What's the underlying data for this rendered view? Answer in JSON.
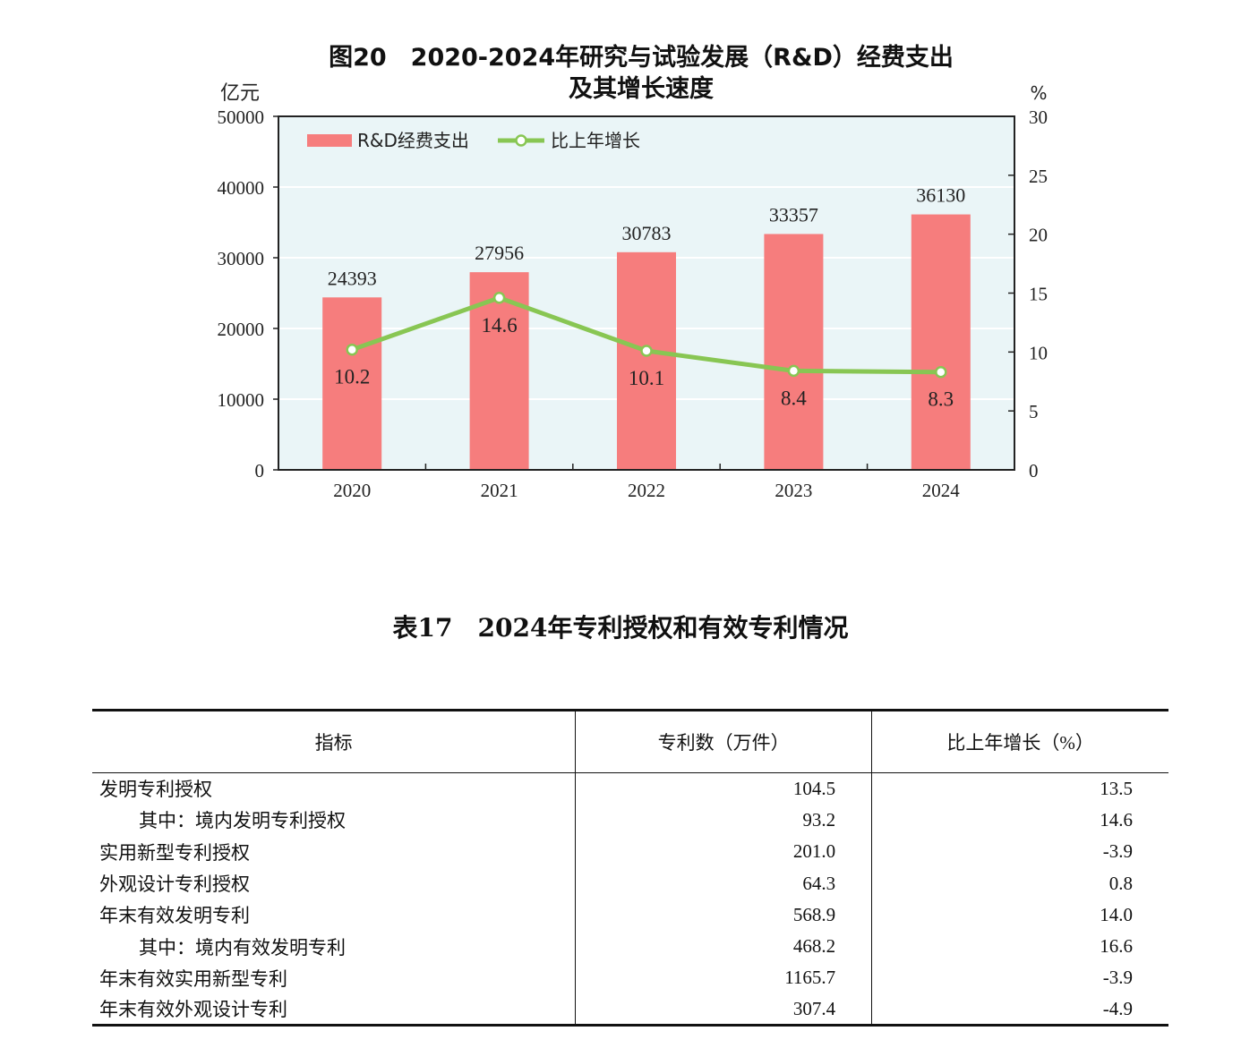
{
  "chart_data": {
    "type": "bar+line",
    "title_line1": "图20　2020-2024年研究与试验发展（R&D）经费支出",
    "title_line2": "及其增长速度",
    "left_unit": "亿元",
    "right_unit": "%",
    "categories": [
      "2020",
      "2021",
      "2022",
      "2023",
      "2024"
    ],
    "series": [
      {
        "name": "R&D经费支出",
        "type": "bar",
        "axis": "left",
        "values": [
          24393,
          27956,
          30783,
          33357,
          36130
        ],
        "labels": [
          "24393",
          "27956",
          "30783",
          "33357",
          "36130"
        ]
      },
      {
        "name": "比上年增长",
        "type": "line",
        "axis": "right",
        "values": [
          10.2,
          14.6,
          10.1,
          8.4,
          8.3
        ],
        "labels": [
          "10.2",
          "14.6",
          "10.1",
          "8.4",
          "8.3"
        ]
      }
    ],
    "left_axis": {
      "min": 0,
      "max": 50000,
      "ticks": [
        "0",
        "10000",
        "20000",
        "30000",
        "40000",
        "50000"
      ]
    },
    "right_axis": {
      "min": 0,
      "max": 30,
      "ticks": [
        "0",
        "5",
        "10",
        "15",
        "20",
        "25",
        "30"
      ]
    },
    "legend_position": "top-left",
    "colors": {
      "bar": "#f67d7d",
      "line": "#88c653",
      "plot_bg": "#eaf5f7",
      "grid": "#ffffff",
      "axis": "#222222"
    }
  },
  "table": {
    "title": "表17　2024年专利授权和有效专利情况",
    "headers": [
      "指标",
      "专利数（万件）",
      "比上年增长（%）"
    ],
    "rows": [
      {
        "indicator": "发明专利授权",
        "count": "104.5",
        "growth": "13.5",
        "indent": false
      },
      {
        "indicator": "其中：境内发明专利授权",
        "count": "93.2",
        "growth": "14.6",
        "indent": true
      },
      {
        "indicator": "实用新型专利授权",
        "count": "201.0",
        "growth": "-3.9",
        "indent": false
      },
      {
        "indicator": "外观设计专利授权",
        "count": "64.3",
        "growth": "0.8",
        "indent": false
      },
      {
        "indicator": "年末有效发明专利",
        "count": "568.9",
        "growth": "14.0",
        "indent": false
      },
      {
        "indicator": "其中：境内有效发明专利",
        "count": "468.2",
        "growth": "16.6",
        "indent": true
      },
      {
        "indicator": "年末有效实用新型专利",
        "count": "1165.7",
        "growth": "-3.9",
        "indent": false
      },
      {
        "indicator": "年末有效外观设计专利",
        "count": "307.4",
        "growth": "-4.9",
        "indent": false
      }
    ]
  }
}
